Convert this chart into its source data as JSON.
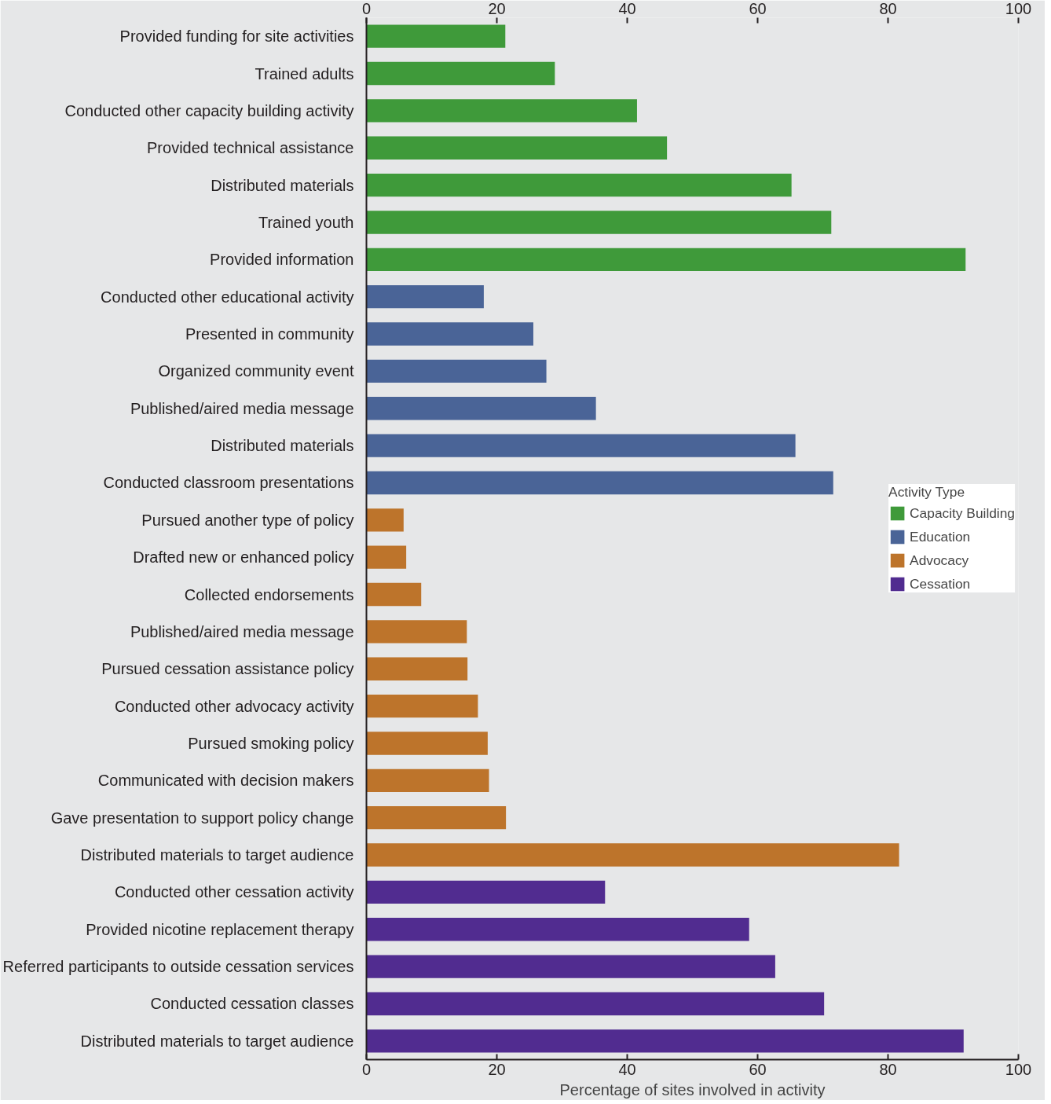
{
  "chart_data": {
    "type": "bar",
    "orientation": "horizontal",
    "xlabel": "Percentage of sites involved in activity",
    "legend_title": "Activity Type",
    "legend": "right",
    "categories": [
      "Provided funding for site activities",
      "Trained adults",
      "Conducted other capacity building activity",
      "Provided technical assistance",
      "Distributed materials",
      "Trained youth",
      "Provided information",
      "Conducted other educational activity",
      "Presented in community",
      "Organized community event",
      "Published/aired media message",
      "Distributed materials",
      "Conducted classroom presentations",
      "Pursued another type of policy",
      "Drafted new or enhanced policy",
      "Collected endorsements",
      "Published/aired media message",
      "Pursued cessation assistance policy",
      "Conducted other advocacy activity",
      "Pursued smoking policy",
      "Communicated with decision makers",
      "Gave presentation to support policy change",
      "Distributed materials to target audience",
      "Conducted other cessation activity",
      "Provided nicotine replacement therapy",
      "Referred participants to outside cessation services",
      "Conducted cessation classes",
      "Distributed materials to target audience"
    ],
    "series": [
      {
        "name": "Capacity Building",
        "color": "#3f9a3a",
        "values": [
          21.3,
          28.9,
          41.5,
          46.1,
          65.2,
          71.3,
          91.9,
          null,
          null,
          null,
          null,
          null,
          null,
          null,
          null,
          null,
          null,
          null,
          null,
          null,
          null,
          null,
          null,
          null,
          null,
          null,
          null,
          null
        ]
      },
      {
        "name": "Education",
        "color": "#4a6497",
        "values": [
          null,
          null,
          null,
          null,
          null,
          null,
          null,
          18.0,
          25.6,
          27.6,
          35.2,
          65.8,
          71.6,
          null,
          null,
          null,
          null,
          null,
          null,
          null,
          null,
          null,
          null,
          null,
          null,
          null,
          null,
          null
        ]
      },
      {
        "name": "Advocacy",
        "color": "#bd742b",
        "values": [
          null,
          null,
          null,
          null,
          null,
          null,
          null,
          null,
          null,
          null,
          null,
          null,
          null,
          5.7,
          6.1,
          8.4,
          15.4,
          15.5,
          17.1,
          18.6,
          18.8,
          21.4,
          81.7,
          null,
          null,
          null,
          null,
          null
        ]
      },
      {
        "name": "Cessation",
        "color": "#512c90",
        "values": [
          null,
          null,
          null,
          null,
          null,
          null,
          null,
          null,
          null,
          null,
          null,
          null,
          null,
          null,
          null,
          null,
          null,
          null,
          null,
          null,
          null,
          null,
          null,
          36.6,
          58.7,
          62.7,
          70.2,
          91.6
        ]
      }
    ],
    "xlim": [
      0,
      100
    ],
    "xticks": [
      0,
      20,
      40,
      60,
      80,
      100
    ],
    "x2lim": [
      0,
      100
    ],
    "x2ticks": [
      0,
      20,
      40,
      60,
      80,
      100
    ]
  }
}
